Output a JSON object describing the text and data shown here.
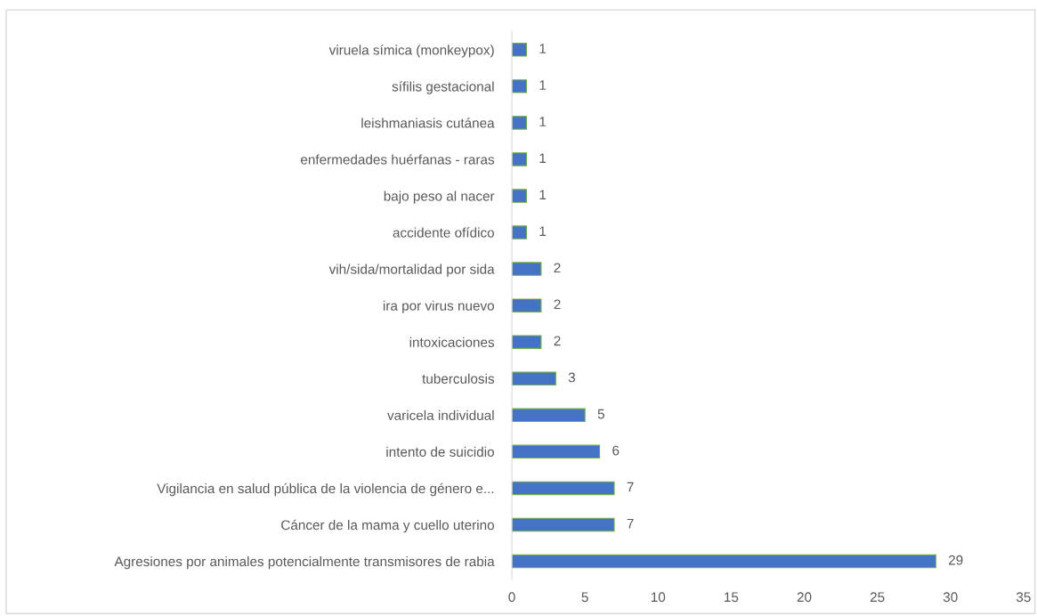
{
  "chart_data": {
    "type": "bar",
    "orientation": "horizontal",
    "categories": [
      "viruela símica (monkeypox)",
      "sífilis gestacional",
      "leishmaniasis cutánea",
      "enfermedades huérfanas - raras",
      "bajo peso al nacer",
      "accidente ofídico",
      "vih/sida/mortalidad por sida",
      "ira por virus nuevo",
      "intoxicaciones",
      "tuberculosis",
      "varicela individual",
      "intento de suicidio",
      "Vigilancia en salud pública de la violencia de género e...",
      "Cáncer de la mama y cuello uterino",
      "Agresiones por animales potencialmente transmisores de rabia"
    ],
    "values": [
      1,
      1,
      1,
      1,
      1,
      1,
      2,
      2,
      2,
      3,
      5,
      6,
      7,
      7,
      29
    ],
    "color": "#4472c4",
    "xlim": [
      0,
      35
    ],
    "xticks": [
      0,
      5,
      10,
      15,
      20,
      25,
      30,
      35
    ],
    "grid": false,
    "data_labels": true
  }
}
